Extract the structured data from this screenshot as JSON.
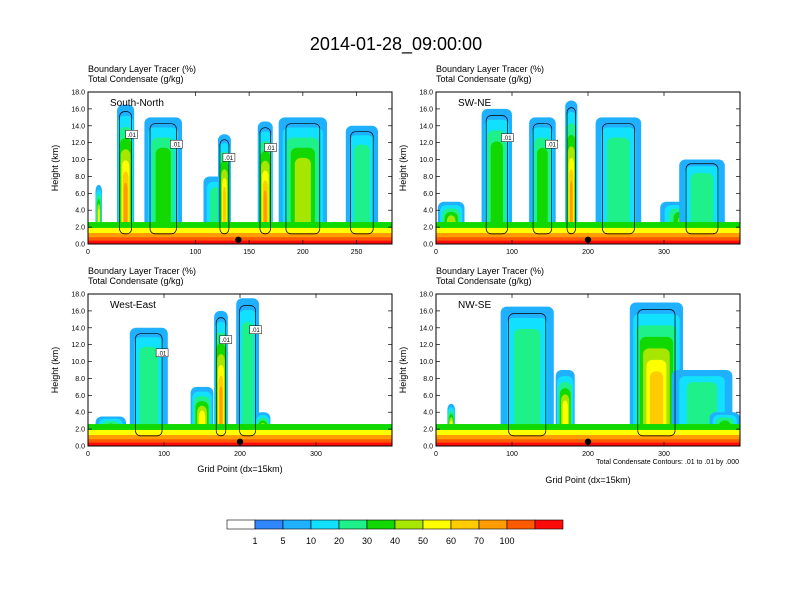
{
  "page": {
    "title": "2014-01-28_09:00:00"
  },
  "footnote": "Total Condensate Contours: .01 to .01 by .000",
  "colorbar": {
    "colors": [
      "#ffffff",
      "#2f86ff",
      "#1fb0ff",
      "#11e0ff",
      "#1ef08a",
      "#11d900",
      "#a6e600",
      "#ffff00",
      "#ffcc00",
      "#ff9d00",
      "#ff5a00",
      "#ff0a0a"
    ],
    "labels": [
      "1",
      "5",
      "10",
      "20",
      "30",
      "40",
      "50",
      "60",
      "70",
      "100"
    ]
  },
  "chart_data": [
    {
      "type": "heatmap",
      "orientation_label": "South-North",
      "title_lines": [
        "Boundary Layer Tracer   (%)",
        "Total Condensate   (g/kg)"
      ],
      "xlabel": "",
      "ylabel": "Height (km)",
      "xlim": [
        0,
        283
      ],
      "ylim": [
        0,
        18
      ],
      "xticks": [
        "0",
        "100",
        "150",
        "200",
        "250"
      ],
      "xtick_values": [
        0,
        100,
        150,
        200,
        250
      ],
      "yticks": [
        "0.0",
        "2.0",
        "4.0",
        "6.0",
        "8.0",
        "10.0",
        "12.0",
        "14.0",
        "16.0",
        "18.0"
      ],
      "contour_labels": [
        ".01",
        ".01",
        ".01",
        ".01"
      ],
      "marker_x": 140,
      "features": [
        {
          "x": 10,
          "width": 6,
          "top": 7,
          "level": 40
        },
        {
          "x": 35,
          "width": 16,
          "top": 16.5,
          "level": 60
        },
        {
          "x": 70,
          "width": 35,
          "top": 15,
          "level": 25
        },
        {
          "x": 120,
          "width": 25,
          "top": 8,
          "level": 10
        },
        {
          "x": 127,
          "width": 12,
          "top": 13,
          "level": 50
        },
        {
          "x": 165,
          "width": 14,
          "top": 14.5,
          "level": 60
        },
        {
          "x": 200,
          "width": 45,
          "top": 15,
          "level": 30
        },
        {
          "x": 255,
          "width": 30,
          "top": 14,
          "level": 12
        }
      ]
    },
    {
      "type": "heatmap",
      "orientation_label": "SW-NE",
      "title_lines": [
        "Boundary Layer Tracer   (%)",
        "Total Condensate   (g/kg)"
      ],
      "xlabel": "",
      "ylabel": "Height (km)",
      "xlim": [
        0,
        400
      ],
      "ylim": [
        0,
        18
      ],
      "xticks": [
        "0",
        "100",
        "200",
        "300"
      ],
      "xtick_values": [
        0,
        100,
        200,
        300
      ],
      "yticks": [
        "0.0",
        "2.0",
        "4.0",
        "6.0",
        "8.0",
        "10.0",
        "12.0",
        "14.0",
        "16.0",
        "18.0"
      ],
      "contour_labels": [
        ".01",
        ".01"
      ],
      "marker_x": 200,
      "features": [
        {
          "x": 20,
          "width": 35,
          "top": 5,
          "level": 30
        },
        {
          "x": 80,
          "width": 40,
          "top": 16,
          "level": 25
        },
        {
          "x": 140,
          "width": 35,
          "top": 15,
          "level": 20
        },
        {
          "x": 178,
          "width": 16,
          "top": 17,
          "level": 60
        },
        {
          "x": 240,
          "width": 60,
          "top": 15,
          "level": 10
        },
        {
          "x": 330,
          "width": 70,
          "top": 5,
          "level": 30
        },
        {
          "x": 350,
          "width": 60,
          "top": 10,
          "level": 15
        }
      ]
    },
    {
      "type": "heatmap",
      "orientation_label": "West-East",
      "title_lines": [
        "Boundary Layer Tracer   (%)",
        "Total Condensate   (g/kg)"
      ],
      "xlabel": "Grid Point (dx=15km)",
      "ylabel": "Height (km)",
      "xlim": [
        0,
        400
      ],
      "ylim": [
        0,
        18
      ],
      "xticks": [
        "0",
        "100",
        "200",
        "300"
      ],
      "xtick_values": [
        0,
        100,
        200,
        300
      ],
      "yticks": [
        "0.0",
        "2.0",
        "4.0",
        "6.0",
        "8.0",
        "10.0",
        "12.0",
        "14.0",
        "16.0",
        "18.0"
      ],
      "contour_labels": [
        ".01",
        ".01",
        ".01"
      ],
      "marker_x": 200,
      "features": [
        {
          "x": 30,
          "width": 40,
          "top": 3.5,
          "level": 20
        },
        {
          "x": 80,
          "width": 50,
          "top": 14,
          "level": 10
        },
        {
          "x": 150,
          "width": 30,
          "top": 7,
          "level": 40
        },
        {
          "x": 175,
          "width": 18,
          "top": 16,
          "level": 60
        },
        {
          "x": 210,
          "width": 30,
          "top": 17.5,
          "level": 10
        },
        {
          "x": 230,
          "width": 20,
          "top": 4,
          "level": 50
        },
        {
          "x": 330,
          "width": 60,
          "top": 2,
          "level": 20
        }
      ]
    },
    {
      "type": "heatmap",
      "orientation_label": "NW-SE",
      "title_lines": [
        "Boundary Layer Tracer   (%)",
        "Total Condensate   (g/kg)"
      ],
      "xlabel": "Grid Point (dx=15km)",
      "ylabel": "Height (km)",
      "xlim": [
        0,
        400
      ],
      "ylim": [
        0,
        18
      ],
      "xticks": [
        "0",
        "100",
        "200",
        "300"
      ],
      "xtick_values": [
        0,
        100,
        200,
        300
      ],
      "yticks": [
        "0.0",
        "2.0",
        "4.0",
        "6.0",
        "8.0",
        "10.0",
        "12.0",
        "14.0",
        "16.0",
        "18.0"
      ],
      "contour_labels": [],
      "marker_x": 200,
      "features": [
        {
          "x": 20,
          "width": 10,
          "top": 5,
          "level": 60
        },
        {
          "x": 120,
          "width": 70,
          "top": 16.5,
          "level": 10
        },
        {
          "x": 170,
          "width": 25,
          "top": 9,
          "level": 40
        },
        {
          "x": 290,
          "width": 70,
          "top": 17,
          "level": 50
        },
        {
          "x": 350,
          "width": 80,
          "top": 9,
          "level": 15
        },
        {
          "x": 380,
          "width": 40,
          "top": 4,
          "level": 20
        }
      ]
    }
  ]
}
